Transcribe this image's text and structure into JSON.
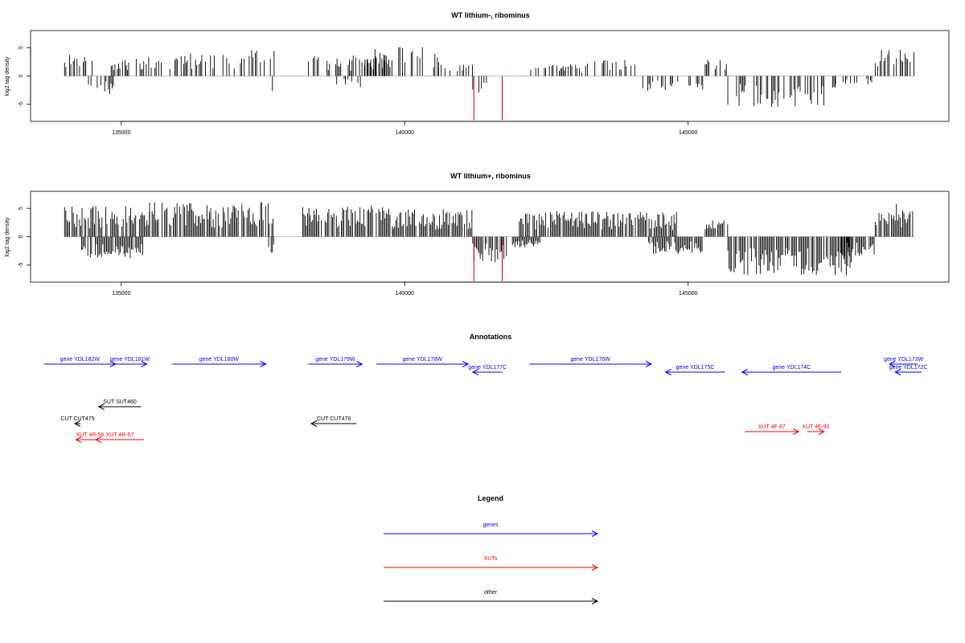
{
  "colors": {
    "genes": "#0000ff",
    "xuts": "#ff0000",
    "other": "#000000",
    "highlight": "#cc0000"
  },
  "chart_data": [
    {
      "type": "bar",
      "title": "WT lithium-, ribominus",
      "xlabel": "",
      "ylabel": "log2 tag density",
      "xlim": [
        133400,
        149600
      ],
      "ylim": [
        -8,
        8
      ],
      "xticks": [
        135000,
        140000,
        145000
      ],
      "yticks": [
        -5,
        0,
        5
      ],
      "baseline_range": [
        134000,
        149000
      ],
      "seed": 11,
      "density": 0.45,
      "segments": [
        {
          "x0": 134000,
          "x1": 134500,
          "sign": 1,
          "max": 4.5
        },
        {
          "x0": 134400,
          "x1": 134900,
          "sign": -1,
          "max": 3.2
        },
        {
          "x0": 134800,
          "x1": 135200,
          "sign": 1,
          "max": 2.5
        },
        {
          "x0": 135000,
          "x1": 136200,
          "sign": 1,
          "max": 3.5
        },
        {
          "x0": 136200,
          "x1": 137700,
          "sign": 1,
          "max": 4.6
        },
        {
          "x0": 137600,
          "x1": 137700,
          "sign": -1,
          "max": 3.0
        },
        {
          "x0": 138300,
          "x1": 139800,
          "sign": 1,
          "max": 3.6
        },
        {
          "x0": 138800,
          "x1": 139300,
          "sign": -1,
          "max": 2.0
        },
        {
          "x0": 139300,
          "x1": 140600,
          "sign": 1,
          "max": 5.2
        },
        {
          "x0": 140600,
          "x1": 141200,
          "sign": 1,
          "max": 2.0
        },
        {
          "x0": 141200,
          "x1": 141600,
          "sign": -1,
          "max": 3.5
        },
        {
          "x0": 142200,
          "x1": 143200,
          "sign": 1,
          "max": 2.0
        },
        {
          "x0": 143200,
          "x1": 144200,
          "sign": 1,
          "max": 3.0
        },
        {
          "x0": 144200,
          "x1": 145300,
          "sign": -1,
          "max": 2.6
        },
        {
          "x0": 145300,
          "x1": 145700,
          "sign": 1,
          "max": 3.0
        },
        {
          "x0": 145700,
          "x1": 147600,
          "sign": -1,
          "max": 5.5
        },
        {
          "x0": 147600,
          "x1": 148300,
          "sign": -1,
          "max": 1.5
        },
        {
          "x0": 148300,
          "x1": 149000,
          "sign": 1,
          "max": 4.6
        }
      ],
      "highlight_x": [
        141220,
        141720
      ],
      "highlight_value": -7.8
    },
    {
      "type": "bar",
      "title": "WT lithium+, ribominus",
      "xlabel": "",
      "ylabel": "log2 tag density",
      "xlim": [
        133400,
        149600
      ],
      "ylim": [
        -8,
        8
      ],
      "xticks": [
        135000,
        140000,
        145000
      ],
      "yticks": [
        -5,
        0,
        5
      ],
      "baseline_range": [
        134000,
        149000
      ],
      "seed": 29,
      "density": 0.85,
      "segments": [
        {
          "x0": 134000,
          "x1": 135500,
          "sign": 1,
          "max": 5.5
        },
        {
          "x0": 134300,
          "x1": 135400,
          "sign": -1,
          "max": 3.8
        },
        {
          "x0": 135500,
          "x1": 137700,
          "sign": 1,
          "max": 6.2
        },
        {
          "x0": 137600,
          "x1": 137700,
          "sign": -1,
          "max": 3.0
        },
        {
          "x0": 138200,
          "x1": 139800,
          "sign": 1,
          "max": 5.5
        },
        {
          "x0": 139800,
          "x1": 141200,
          "sign": 1,
          "max": 5.0
        },
        {
          "x0": 141200,
          "x1": 141800,
          "sign": -1,
          "max": 4.5
        },
        {
          "x0": 141900,
          "x1": 142400,
          "sign": -1,
          "max": 2.0
        },
        {
          "x0": 142000,
          "x1": 144800,
          "sign": 1,
          "max": 4.5
        },
        {
          "x0": 144300,
          "x1": 145300,
          "sign": -1,
          "max": 3.2
        },
        {
          "x0": 145300,
          "x1": 145700,
          "sign": 1,
          "max": 3.0
        },
        {
          "x0": 145700,
          "x1": 147900,
          "sign": -1,
          "max": 6.8
        },
        {
          "x0": 147600,
          "x1": 148300,
          "sign": -1,
          "max": 3.5
        },
        {
          "x0": 148300,
          "x1": 149000,
          "sign": 1,
          "max": 5.8
        }
      ],
      "highlight_x": [
        141220,
        141720
      ],
      "highlight_value": -7.8
    }
  ],
  "annotations": {
    "title": "Annotations",
    "genes": [
      {
        "label": "gene YDL182W",
        "x0": 133640,
        "x1": 134900,
        "strand": "+",
        "row": 0
      },
      {
        "label": "gene YDL181W",
        "x0": 134850,
        "x1": 135450,
        "strand": "+",
        "row": 0
      },
      {
        "label": "gene YDL180W",
        "x0": 135900,
        "x1": 137550,
        "strand": "+",
        "row": 0
      },
      {
        "label": "gene YDL179W",
        "x0": 138300,
        "x1": 139250,
        "strand": "+",
        "row": 0
      },
      {
        "label": "gene YDL178W",
        "x0": 139500,
        "x1": 141120,
        "strand": "+",
        "row": 0
      },
      {
        "label": "gene YDL177C",
        "x0": 141200,
        "x1": 141720,
        "strand": "-",
        "row": 1
      },
      {
        "label": "gene YDL176W",
        "x0": 142200,
        "x1": 144350,
        "strand": "+",
        "row": 0
      },
      {
        "label": "gene YDL175C",
        "x0": 144600,
        "x1": 145650,
        "strand": "-",
        "row": 1
      },
      {
        "label": "gene YDL174C",
        "x0": 145950,
        "x1": 147700,
        "strand": "-",
        "row": 1
      },
      {
        "label": "gene YDL173W",
        "x0": 148550,
        "x1": 149050,
        "strand": "-",
        "row": 0
      },
      {
        "label": "gene YDL172C",
        "x0": 148650,
        "x1": 149120,
        "strand": "-",
        "row": 1
      }
    ],
    "xuts": [
      {
        "label": "XUT 4R-56",
        "x0": 134200,
        "x1": 134700,
        "strand": "-"
      },
      {
        "label": "XUT 4R-57",
        "x0": 134550,
        "x1": 135400,
        "strand": "-"
      },
      {
        "label": "XUT 4F-87",
        "x0": 146000,
        "x1": 146950,
        "strand": "+"
      },
      {
        "label": "XUT 4F-90",
        "x0": 147100,
        "x1": 147400,
        "strand": "+"
      }
    ],
    "others": [
      {
        "label": "SUT SUT460",
        "x0": 134600,
        "x1": 135350,
        "strand": "-",
        "row": 0
      },
      {
        "label": "CUT CUT475",
        "x0": 134180,
        "x1": 134280,
        "strand": "-",
        "row": 1
      },
      {
        "label": "CUT CUT476",
        "x0": 138350,
        "x1": 139150,
        "strand": "-",
        "row": 1
      }
    ]
  },
  "legend": {
    "title": "Legend",
    "items": [
      {
        "label": "genes",
        "color_key": "genes"
      },
      {
        "label": "XUTs",
        "color_key": "xuts"
      },
      {
        "label": "other",
        "color_key": "other"
      }
    ]
  }
}
